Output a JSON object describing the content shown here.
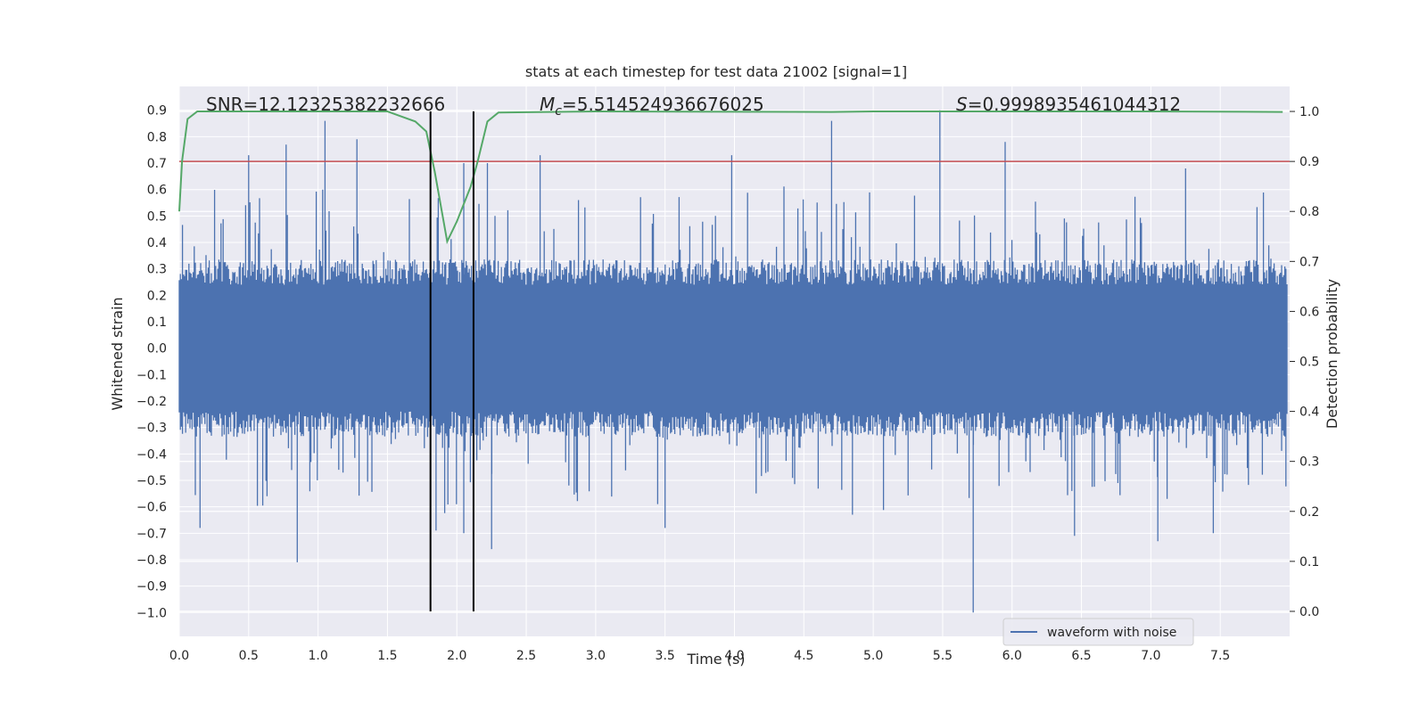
{
  "chart_data": {
    "type": "line",
    "title": "stats at each timestep for test data 21002 [signal=1]",
    "xlabel": "Time (s)",
    "ylabel_left": "Whitened strain",
    "ylabel_right": "Detection probability",
    "xlim": [
      0.0,
      8.0
    ],
    "ylim_left": [
      -1.09,
      0.99
    ],
    "ylim_right": [
      -0.05,
      1.05
    ],
    "x_ticks": [
      "0.0",
      "0.5",
      "1.0",
      "1.5",
      "2.0",
      "2.5",
      "3.0",
      "3.5",
      "4.0",
      "4.5",
      "5.0",
      "5.5",
      "6.0",
      "6.5",
      "7.0",
      "7.5"
    ],
    "left_ticks": [
      "0.9",
      "0.8",
      "0.7",
      "0.6",
      "0.5",
      "0.4",
      "0.3",
      "0.2",
      "0.1",
      "0.0",
      "−0.1",
      "−0.2",
      "−0.3",
      "−0.4",
      "−0.5",
      "−0.6",
      "−0.7",
      "−0.8",
      "−0.9",
      "−1.0"
    ],
    "right_ticks": [
      "1.0",
      "0.9",
      "0.8",
      "0.7",
      "0.6",
      "0.5",
      "0.4",
      "0.3",
      "0.2",
      "0.1",
      "0.0"
    ],
    "annotations": {
      "snr": "SNR=12.12325382232666",
      "mc_symbol": "M",
      "mc_sub": "c",
      "mc_value": "=5.514524936676025",
      "s_symbol": "S",
      "s_value": "=0.9998935461044312"
    },
    "legend": {
      "label": "waveform with noise",
      "location": "lower-right"
    },
    "waveform": {
      "name": "waveform with noise",
      "color": "#4c72b0",
      "noise_envelope": 0.32,
      "spikes": [
        {
          "t": 0.5,
          "v": 0.73
        },
        {
          "t": 0.77,
          "v": 0.77
        },
        {
          "t": 1.05,
          "v": 0.86
        },
        {
          "t": 1.28,
          "v": 0.79
        },
        {
          "t": 2.05,
          "v": 0.7
        },
        {
          "t": 2.22,
          "v": 0.7
        },
        {
          "t": 2.6,
          "v": 0.73
        },
        {
          "t": 3.98,
          "v": 0.73
        },
        {
          "t": 4.7,
          "v": 0.86
        },
        {
          "t": 5.48,
          "v": 0.9
        },
        {
          "t": 5.95,
          "v": 0.78
        },
        {
          "t": 7.25,
          "v": 0.68
        },
        {
          "t": 0.85,
          "v": -0.81
        },
        {
          "t": 0.15,
          "v": -0.68
        },
        {
          "t": 1.85,
          "v": -0.69
        },
        {
          "t": 2.05,
          "v": -0.7
        },
        {
          "t": 2.25,
          "v": -0.76
        },
        {
          "t": 3.5,
          "v": -0.68
        },
        {
          "t": 4.85,
          "v": -0.63
        },
        {
          "t": 5.72,
          "v": -1.0
        },
        {
          "t": 6.45,
          "v": -0.71
        },
        {
          "t": 7.05,
          "v": -0.73
        },
        {
          "t": 7.45,
          "v": -0.7
        }
      ]
    },
    "detection_probability": {
      "color": "#55a868",
      "x": [
        0.0,
        0.02,
        0.06,
        0.13,
        0.5,
        1.0,
        1.5,
        1.6,
        1.7,
        1.78,
        1.84,
        1.93,
        2.0,
        2.1,
        2.15,
        2.22,
        2.3,
        3.0,
        4.7,
        5.0,
        6.0,
        7.0,
        7.95
      ],
      "y": [
        0.8,
        0.9,
        0.985,
        1.0,
        1.0,
        1.0,
        1.0,
        0.99,
        0.98,
        0.96,
        0.88,
        0.74,
        0.78,
        0.85,
        0.9,
        0.98,
        0.998,
        1.0,
        0.999,
        1.0,
        1.0,
        1.0,
        0.999
      ]
    },
    "threshold": {
      "value": 0.9,
      "axis": "right",
      "color": "#c44e52"
    },
    "window_markers": {
      "x": [
        1.81,
        2.12
      ],
      "color": "#000000"
    }
  }
}
